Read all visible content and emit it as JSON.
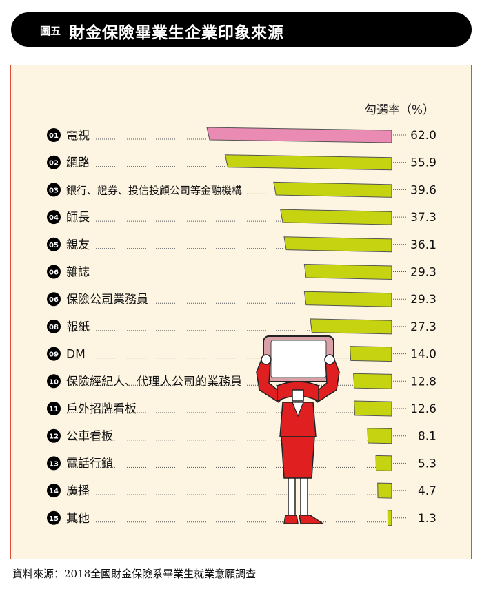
{
  "header": {
    "tag": "圖五",
    "title": "財金保險畢業生企業印象來源"
  },
  "unit_label": "勾選率（%）",
  "source": "資料來源：2018全國財金保險系畢業生就業意願調查",
  "colors": {
    "highlight": "#e98bb2",
    "bar": "#c5d310",
    "frame": "#e44b3b",
    "panel": "#fdf5e2"
  },
  "chart_data": {
    "type": "bar",
    "orientation": "horizontal",
    "categories": [
      "電視",
      "網路",
      "銀行、證券、投信投顧公司等金融機構",
      "師長",
      "親友",
      "雜誌",
      "保險公司業務員",
      "報紙",
      "DM",
      "保險經紀人、代理人公司的業務員",
      "戶外招牌看板",
      "公車看板",
      "電話行銷",
      "廣播",
      "其他"
    ],
    "ranks": [
      "01",
      "02",
      "03",
      "04",
      "05",
      "06",
      "06",
      "08",
      "09",
      "10",
      "11",
      "12",
      "13",
      "14",
      "15"
    ],
    "values": [
      62.0,
      55.9,
      39.6,
      37.3,
      36.1,
      29.3,
      29.3,
      27.3,
      14.0,
      12.8,
      12.6,
      8.1,
      5.3,
      4.7,
      1.3
    ],
    "value_labels": [
      "62.0",
      "55.9",
      "39.6",
      "37.3",
      "36.1",
      "29.3",
      "29.3",
      "27.3",
      "14.0",
      "12.8",
      "12.6",
      "8.1",
      "5.3",
      "4.7",
      "1.3"
    ],
    "xlim": [
      0,
      62.0
    ]
  }
}
